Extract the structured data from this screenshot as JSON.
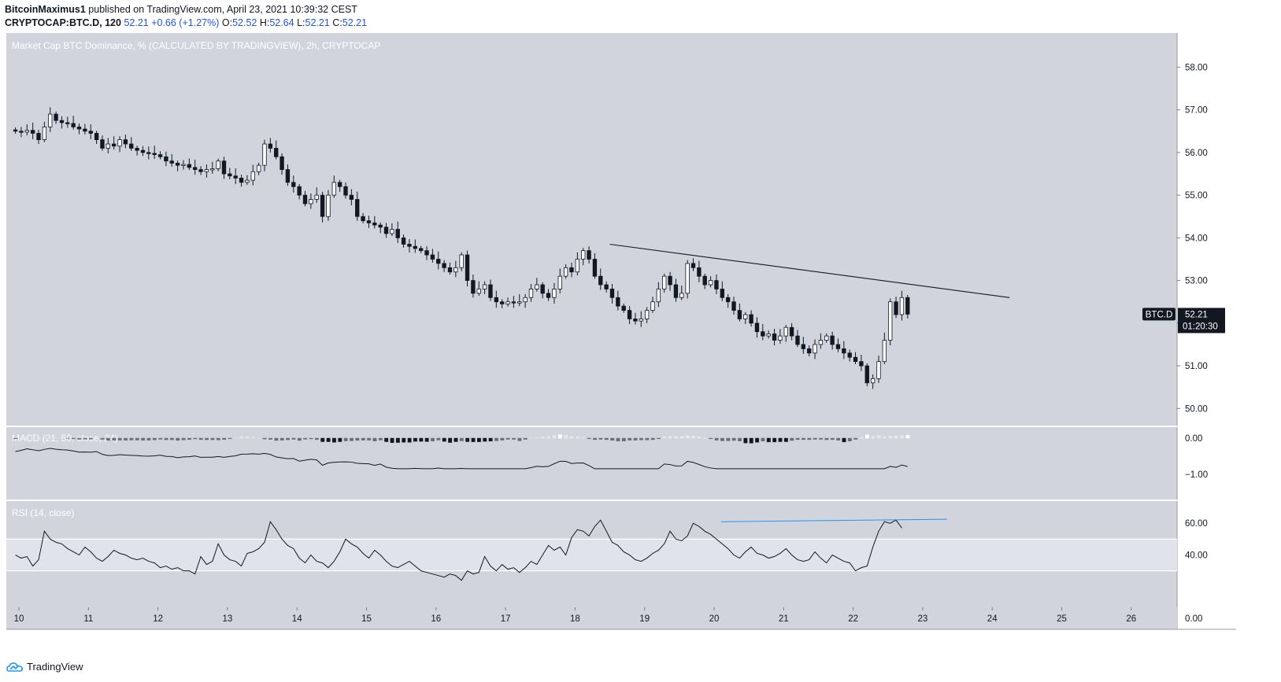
{
  "header": {
    "author": "BitcoinMaximus1",
    "published": " published on TradingView.com, April 23, 2021 10:39:32 CEST",
    "symbol": "CRYPTOCAP:BTC.D, 120",
    "last": "52.21",
    "change": "+0.66 (+1.27%)",
    "o_label": "O:",
    "o": "52.52",
    "h_label": "H:",
    "h": "52.64",
    "l_label": "L:",
    "l": "52.21",
    "c_label": "C:",
    "c": "52.21"
  },
  "footer": {
    "brand": "TradingView"
  },
  "colors": {
    "pane_bg": "#d1d4dc",
    "up": "#ffffff",
    "down": "#131722",
    "rsi_line": "#131722",
    "trend_rsi": "#2196f3",
    "label_bg": "#131722"
  },
  "chart_data": [
    {
      "type": "candlestick",
      "title": "Market Cap BTC Dominance, % (CALCULATED BY TRADINGVIEW), 2h, CRYPTOCAP",
      "ylim": [
        49.6,
        58.8
      ],
      "yticks": [
        "58.00",
        "57.00",
        "56.00",
        "55.00",
        "54.00",
        "53.00",
        "52.00",
        "51.00",
        "50.00"
      ],
      "ytick_values": [
        58,
        57,
        56,
        55,
        54,
        53,
        52,
        51,
        50
      ],
      "xticks": [
        "10",
        "11",
        "12",
        "13",
        "14",
        "15",
        "16",
        "17",
        "18",
        "19",
        "20",
        "21",
        "22",
        "23",
        "24",
        "25",
        "26"
      ],
      "xtick_days": [
        10,
        11,
        12,
        13,
        14,
        15,
        16,
        17,
        18,
        19,
        20,
        21,
        22,
        23,
        24,
        25,
        26
      ],
      "x_start_day": 9.95,
      "bars_per_day": 12,
      "closes": [
        56.5,
        56.48,
        56.52,
        56.45,
        56.3,
        56.6,
        56.9,
        56.75,
        56.7,
        56.68,
        56.6,
        56.55,
        56.5,
        56.45,
        56.3,
        56.1,
        56.2,
        56.15,
        56.3,
        56.2,
        56.1,
        56.05,
        56.0,
        55.98,
        55.95,
        55.9,
        55.8,
        55.75,
        55.7,
        55.72,
        55.65,
        55.6,
        55.55,
        55.6,
        55.62,
        55.8,
        55.5,
        55.45,
        55.4,
        55.3,
        55.35,
        55.55,
        55.7,
        56.2,
        56.1,
        55.9,
        55.6,
        55.3,
        55.2,
        55.0,
        54.8,
        54.9,
        55.0,
        54.5,
        55.0,
        55.3,
        55.2,
        55.0,
        54.9,
        54.5,
        54.4,
        54.35,
        54.3,
        54.25,
        54.1,
        54.2,
        54.0,
        53.85,
        53.8,
        53.75,
        53.7,
        53.6,
        53.5,
        53.4,
        53.3,
        53.2,
        53.3,
        53.6,
        53.0,
        52.7,
        52.8,
        52.9,
        52.6,
        52.5,
        52.45,
        52.5,
        52.48,
        52.5,
        52.6,
        52.8,
        52.9,
        52.7,
        52.6,
        52.8,
        53.1,
        53.3,
        53.2,
        53.5,
        53.7,
        53.5,
        53.1,
        52.9,
        52.8,
        52.6,
        52.4,
        52.3,
        52.1,
        52.05,
        52.1,
        52.3,
        52.5,
        52.8,
        53.1,
        52.9,
        52.6,
        52.7,
        53.4,
        53.3,
        53.1,
        52.9,
        53.0,
        52.8,
        52.6,
        52.5,
        52.3,
        52.1,
        52.2,
        52.0,
        51.8,
        51.7,
        51.75,
        51.6,
        51.7,
        51.9,
        51.7,
        51.5,
        51.4,
        51.3,
        51.5,
        51.6,
        51.7,
        51.5,
        51.4,
        51.3,
        51.2,
        51.1,
        51.0,
        50.6,
        50.7,
        51.1,
        51.6,
        52.5,
        52.2,
        52.6,
        52.21
      ],
      "last_label": "BTC.D",
      "last_value": "52.21",
      "countdown": "01:20:30",
      "trendline": {
        "from": {
          "day": 18.5,
          "value": 53.85
        },
        "to": {
          "day": 24.25,
          "value": 52.6
        }
      }
    },
    {
      "type": "histogram+line",
      "title": "MACD (21, 50, close, 24)",
      "ylim": [
        -1.7,
        0.3
      ],
      "yticks": [
        "0.00",
        "−1.00"
      ],
      "ytick_values": [
        0,
        -1
      ]
    },
    {
      "type": "line",
      "title": "RSI (14, close)",
      "ylim": [
        7,
        74
      ],
      "band": [
        30,
        50
      ],
      "yticks": [
        "60.00",
        "40.00",
        "0.00"
      ],
      "ytick_values": [
        60,
        40,
        0
      ],
      "values": [
        40,
        38,
        39,
        33,
        37,
        55,
        50,
        48,
        47,
        44,
        42,
        40,
        45,
        42,
        38,
        36,
        39,
        43,
        41,
        40,
        38,
        37,
        38,
        36,
        35,
        32,
        33,
        31,
        32,
        30,
        30,
        28,
        39,
        34,
        36,
        47,
        40,
        37,
        36,
        33,
        41,
        42,
        44,
        48,
        61,
        56,
        50,
        46,
        44,
        38,
        35,
        40,
        36,
        35,
        32,
        36,
        42,
        50,
        47,
        45,
        41,
        38,
        43,
        40,
        36,
        33,
        32,
        34,
        36,
        33,
        30,
        29,
        28,
        27,
        26,
        28,
        27,
        24,
        30,
        28,
        29,
        39,
        33,
        30,
        34,
        31,
        32,
        29,
        32,
        36,
        34,
        40,
        46,
        43,
        45,
        40,
        51,
        56,
        55,
        52,
        58,
        62,
        55,
        48,
        46,
        42,
        40,
        37,
        36,
        38,
        41,
        43,
        47,
        55,
        50,
        49,
        52,
        60,
        58,
        55,
        53,
        50,
        47,
        44,
        40,
        38,
        42,
        45,
        41,
        40,
        38,
        39,
        41,
        44,
        40,
        37,
        36,
        37,
        42,
        38,
        35,
        40,
        38,
        36,
        35,
        30,
        32,
        33,
        45,
        55,
        61,
        60,
        62,
        57
      ],
      "trendline": {
        "from": {
          "day": 20.1,
          "value": 61
        },
        "to": {
          "day": 23.35,
          "value": 62.5
        }
      }
    }
  ]
}
